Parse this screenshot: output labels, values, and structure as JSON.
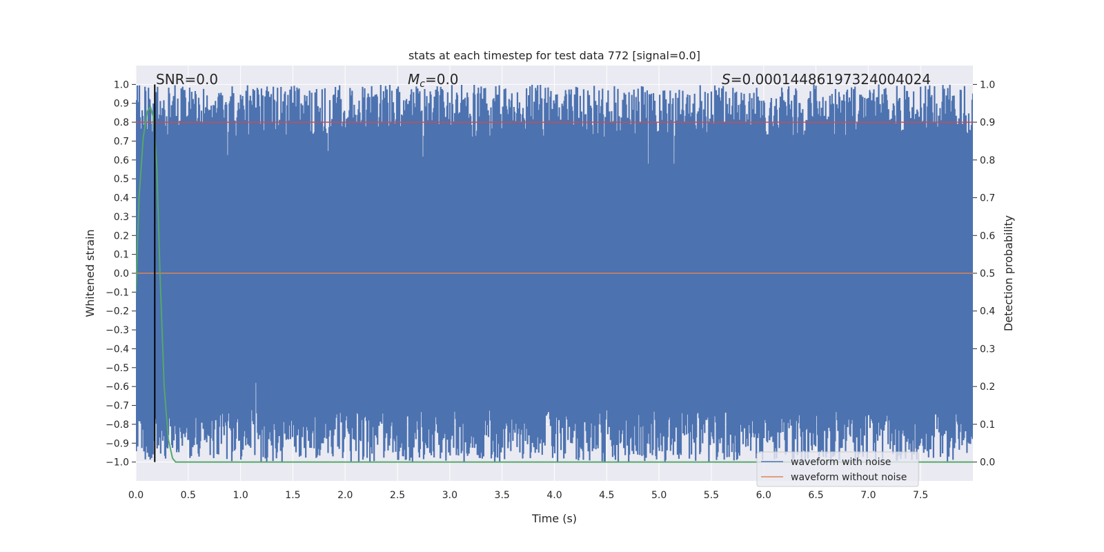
{
  "chart_data": {
    "type": "line",
    "title": "stats at each timestep for test data 772 [signal=0.0]",
    "xlabel": "Time (s)",
    "ylabel_left": "Whitened strain",
    "ylabel_right": "Detection probability",
    "xlim": [
      0.0,
      8.0
    ],
    "ylim_left": [
      -1.1,
      1.1
    ],
    "ylim_right": [
      -0.05,
      1.05
    ],
    "xticks": [
      "0.0",
      "0.5",
      "1.0",
      "1.5",
      "2.0",
      "2.5",
      "3.0",
      "3.5",
      "4.0",
      "4.5",
      "5.0",
      "5.5",
      "6.0",
      "6.5",
      "7.0",
      "7.5"
    ],
    "xtick_values": [
      0.0,
      0.5,
      1.0,
      1.5,
      2.0,
      2.5,
      3.0,
      3.5,
      4.0,
      4.5,
      5.0,
      5.5,
      6.0,
      6.5,
      7.0,
      7.5
    ],
    "yticks_left": [
      "1.0",
      "0.9",
      "0.8",
      "0.7",
      "0.6",
      "0.5",
      "0.4",
      "0.3",
      "0.2",
      "0.1",
      "0.0",
      "−0.1",
      "−0.2",
      "−0.3",
      "−0.4",
      "−0.5",
      "−0.6",
      "−0.7",
      "−0.8",
      "−0.9",
      "−1.0"
    ],
    "ytick_left_values": [
      1.0,
      0.9,
      0.8,
      0.7,
      0.6,
      0.5,
      0.4,
      0.3,
      0.2,
      0.1,
      0.0,
      -0.1,
      -0.2,
      -0.3,
      -0.4,
      -0.5,
      -0.6,
      -0.7,
      -0.8,
      -0.9,
      -1.0
    ],
    "yticks_right": [
      "1.0",
      "0.9",
      "0.8",
      "0.7",
      "0.6",
      "0.5",
      "0.4",
      "0.3",
      "0.2",
      "0.1",
      "0.0"
    ],
    "ytick_right_values": [
      1.0,
      0.9,
      0.8,
      0.7,
      0.6,
      0.5,
      0.4,
      0.3,
      0.2,
      0.1,
      0.0
    ],
    "annotations": {
      "snr": "SNR=0.0",
      "mc_symbol": "M",
      "mc_sub": "c",
      "mc_value": "=0.0",
      "s_symbol": "S",
      "s_value": "=0.00014486197324004024"
    },
    "series": [
      {
        "name": "waveform with noise",
        "color": "#4c72b0",
        "description": "dense noisy whitened strain spanning about -1.0 to 1.0 over 0.0 to 8.0 s"
      },
      {
        "name": "waveform without noise",
        "color": "#dd8452",
        "values": "flat at 0.0"
      },
      {
        "name": "detection probability",
        "color": "#55a868",
        "points": [
          [
            0.0,
            0.45
          ],
          [
            0.03,
            0.7
          ],
          [
            0.07,
            0.86
          ],
          [
            0.11,
            0.93
          ],
          [
            0.14,
            0.94
          ],
          [
            0.17,
            0.91
          ],
          [
            0.2,
            0.78
          ],
          [
            0.23,
            0.5
          ],
          [
            0.27,
            0.2
          ],
          [
            0.31,
            0.06
          ],
          [
            0.35,
            0.01
          ],
          [
            0.38,
            0.0
          ],
          [
            8.0,
            0.0
          ]
        ]
      },
      {
        "name": "threshold",
        "color": "#c44e52",
        "axis": "right",
        "value": 0.9
      },
      {
        "name": "signal marker",
        "color": "#000000",
        "x": 0.18
      }
    ],
    "legend": {
      "placement": "lower-right",
      "entries": [
        "waveform with noise",
        "waveform without noise"
      ]
    }
  }
}
